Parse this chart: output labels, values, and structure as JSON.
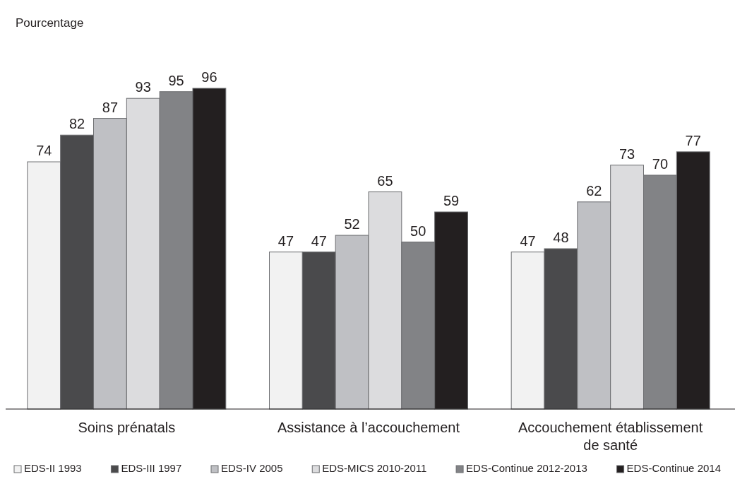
{
  "chart_data": {
    "type": "bar",
    "ylabel": "Pourcentage",
    "categories": [
      "Soins prénatals",
      "Assistance à l’accouchement",
      "Accouchement établissement de santé"
    ],
    "series": [
      {
        "name": "EDS-II 1993",
        "color": "#f2f2f2",
        "values": [
          74,
          47,
          47
        ]
      },
      {
        "name": "EDS-III 1997",
        "color": "#4a4a4c",
        "values": [
          82,
          47,
          48
        ]
      },
      {
        "name": "EDS-IV 2005",
        "color": "#bfc0c4",
        "values": [
          87,
          52,
          62
        ]
      },
      {
        "name": "EDS-MICS 2010-2011",
        "color": "#dcdcde",
        "values": [
          93,
          65,
          73
        ]
      },
      {
        "name": "EDS-Continue 2012-2013",
        "color": "#828386",
        "values": [
          95,
          50,
          70
        ]
      },
      {
        "name": "EDS-Continue 2014",
        "color": "#231f20",
        "values": [
          96,
          59,
          77
        ]
      }
    ],
    "data_labels": true,
    "legend": "bottom",
    "tick_labels": "x"
  }
}
